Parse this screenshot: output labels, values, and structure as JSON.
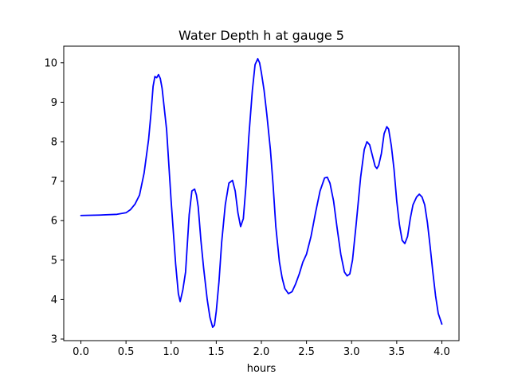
{
  "chart_data": {
    "type": "line",
    "title": "Water Depth h at gauge 5",
    "xlabel": "hours",
    "ylabel": "",
    "xlim": [
      -0.19,
      4.19
    ],
    "ylim": [
      2.96,
      10.42
    ],
    "xticks": [
      0.0,
      0.5,
      1.0,
      1.5,
      2.0,
      2.5,
      3.0,
      3.5,
      4.0
    ],
    "xtick_labels": [
      "0.0",
      "0.5",
      "1.0",
      "1.5",
      "2.0",
      "2.5",
      "3.0",
      "3.5",
      "4.0"
    ],
    "yticks": [
      3,
      4,
      5,
      6,
      7,
      8,
      9,
      10
    ],
    "ytick_labels": [
      "3",
      "4",
      "5",
      "6",
      "7",
      "8",
      "9",
      "10"
    ],
    "grid": false,
    "legend": "none",
    "series": [
      {
        "color": "#0000ff",
        "x": [
          0.0,
          0.2,
          0.4,
          0.5,
          0.55,
          0.6,
          0.65,
          0.7,
          0.75,
          0.78,
          0.8,
          0.82,
          0.84,
          0.86,
          0.88,
          0.9,
          0.95,
          1.0,
          1.05,
          1.08,
          1.1,
          1.13,
          1.16,
          1.2,
          1.23,
          1.26,
          1.28,
          1.3,
          1.33,
          1.36,
          1.4,
          1.43,
          1.46,
          1.48,
          1.5,
          1.53,
          1.56,
          1.6,
          1.64,
          1.68,
          1.71,
          1.74,
          1.77,
          1.8,
          1.83,
          1.86,
          1.9,
          1.93,
          1.96,
          1.98,
          2.0,
          2.03,
          2.06,
          2.1,
          2.13,
          2.16,
          2.2,
          2.23,
          2.26,
          2.3,
          2.34,
          2.38,
          2.42,
          2.46,
          2.5,
          2.55,
          2.6,
          2.65,
          2.7,
          2.73,
          2.76,
          2.8,
          2.84,
          2.88,
          2.92,
          2.95,
          2.98,
          3.01,
          3.05,
          3.1,
          3.14,
          3.17,
          3.2,
          3.23,
          3.26,
          3.28,
          3.3,
          3.33,
          3.36,
          3.39,
          3.41,
          3.44,
          3.47,
          3.5,
          3.53,
          3.56,
          3.59,
          3.62,
          3.65,
          3.68,
          3.72,
          3.75,
          3.78,
          3.81,
          3.84,
          3.87,
          3.9,
          3.93,
          3.96,
          4.0
        ],
        "y": [
          6.13,
          6.14,
          6.16,
          6.2,
          6.28,
          6.42,
          6.65,
          7.2,
          8.05,
          8.8,
          9.4,
          9.65,
          9.62,
          9.7,
          9.6,
          9.35,
          8.3,
          6.5,
          4.9,
          4.15,
          3.95,
          4.25,
          4.7,
          6.15,
          6.75,
          6.8,
          6.65,
          6.35,
          5.5,
          4.8,
          4.0,
          3.55,
          3.3,
          3.35,
          3.7,
          4.45,
          5.45,
          6.4,
          6.95,
          7.02,
          6.75,
          6.2,
          5.85,
          6.05,
          6.9,
          8.1,
          9.3,
          9.95,
          10.1,
          10.0,
          9.75,
          9.3,
          8.7,
          7.8,
          6.9,
          5.85,
          4.95,
          4.55,
          4.28,
          4.15,
          4.2,
          4.4,
          4.65,
          4.95,
          5.15,
          5.6,
          6.2,
          6.75,
          7.08,
          7.1,
          6.95,
          6.5,
          5.8,
          5.15,
          4.7,
          4.6,
          4.65,
          5.0,
          5.9,
          7.1,
          7.8,
          8.0,
          7.92,
          7.65,
          7.38,
          7.32,
          7.4,
          7.7,
          8.2,
          8.38,
          8.32,
          7.9,
          7.3,
          6.5,
          5.9,
          5.5,
          5.42,
          5.6,
          6.05,
          6.4,
          6.6,
          6.67,
          6.6,
          6.4,
          5.95,
          5.35,
          4.7,
          4.1,
          3.65,
          3.38
        ]
      }
    ]
  }
}
